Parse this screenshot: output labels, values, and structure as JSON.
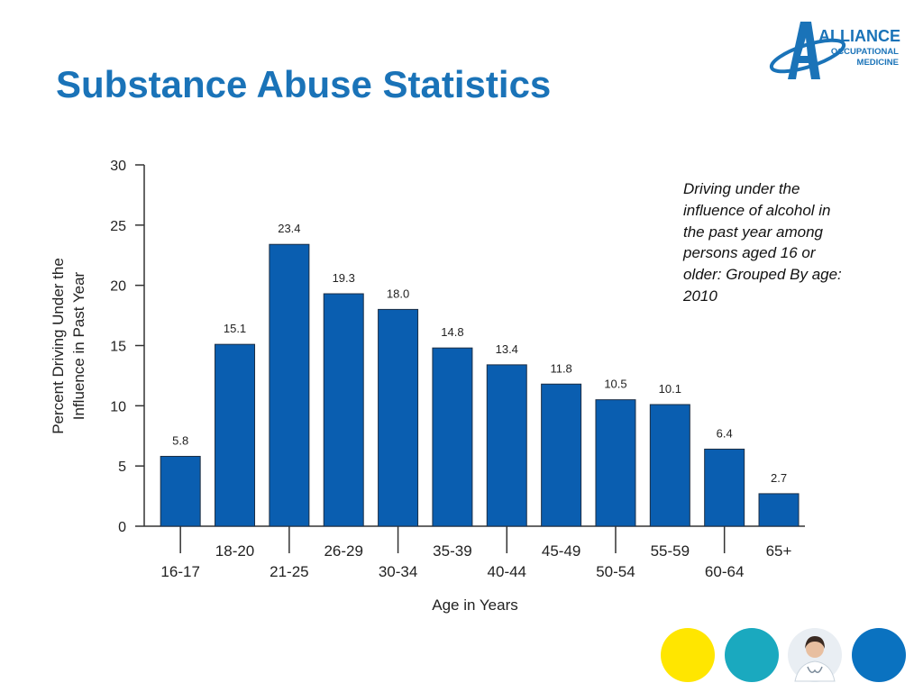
{
  "slide": {
    "title": "Substance Abuse Statistics",
    "caption": "Driving under the influence of alcohol in the past year among persons aged 16 or older: Grouped By age: 2010"
  },
  "logo": {
    "text_line1": "ALLIANCE",
    "text_line2": "OCCUPATIONAL",
    "text_line3": "MEDICINE",
    "color": "#1a73b8"
  },
  "colors": {
    "title": "#1a73b8",
    "bar": "#0a5eb0",
    "circle_yellow": "#ffe600",
    "circle_teal": "#1aa9bf",
    "circle_blue": "#0a72c0"
  },
  "decor": {
    "circles": [
      "yellow-circle",
      "teal-circle",
      "doctor-photo",
      "blue-circle"
    ]
  },
  "chart_data": {
    "type": "bar",
    "categories": [
      "16-17",
      "18-20",
      "21-25",
      "26-29",
      "30-34",
      "35-39",
      "40-44",
      "45-49",
      "50-54",
      "55-59",
      "60-64",
      "65+"
    ],
    "values": [
      5.8,
      15.1,
      23.4,
      19.3,
      18.0,
      14.8,
      13.4,
      11.8,
      10.5,
      10.1,
      6.4,
      2.7
    ],
    "data_labels": [
      "5.8",
      "15.1",
      "23.4",
      "19.3",
      "18.0",
      "14.8",
      "13.4",
      "11.8",
      "10.5",
      "10.1",
      "6.4",
      "2.7"
    ],
    "xlabel": "Age in Years",
    "ylabel_line1": "Percent Driving Under the",
    "ylabel_line2": "Influence in Past Year",
    "ylim": [
      0,
      30
    ],
    "yticks": [
      0,
      5,
      10,
      15,
      20,
      25,
      30
    ],
    "grid": false,
    "legend": "none"
  }
}
